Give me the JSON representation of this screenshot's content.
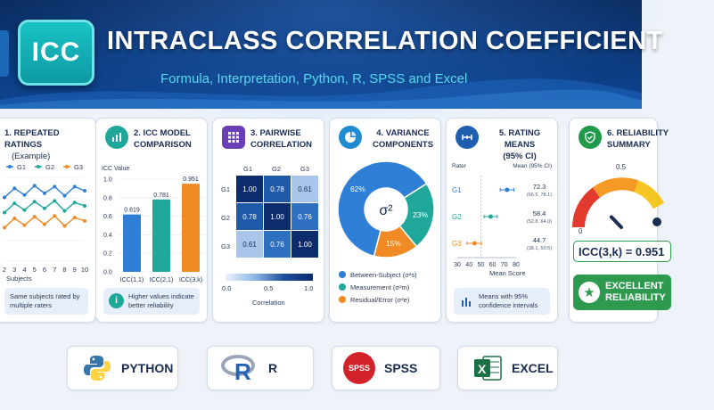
{
  "header": {
    "logo_text": "ICC",
    "title": "INTRACLASS CORRELATION COEFFICIENT",
    "subtitle": "Formula, Interpretation, Python, R, SPSS and Excel"
  },
  "card1": {
    "title": "1. REPEATED RATINGS",
    "subtitle": "(Example)",
    "legend": [
      {
        "name": "G1",
        "color": "#2f7fd6"
      },
      {
        "name": "G2",
        "color": "#1fa89a"
      },
      {
        "name": "G3",
        "color": "#f08a24"
      }
    ],
    "x_ticks": [
      "2",
      "3",
      "4",
      "5",
      "6",
      "7",
      "8",
      "9",
      "10"
    ],
    "xlabel": "Subjects",
    "note": "Same subjects rated by multiple raters",
    "icon": "line-chart-icon"
  },
  "card2": {
    "title": "2. ICC MODEL",
    "title2": "COMPARISON",
    "ylabel": "ICC Value",
    "y_ticks": [
      "1.0",
      "0.8",
      "0.6",
      "0.4",
      "0.2",
      "0.0"
    ],
    "note": "Higher values indicate better reliability",
    "icon": "bar-chart-icon",
    "note_icon": "info-icon"
  },
  "card3": {
    "title": "3. PAIRWISE",
    "title2": "CORRELATION",
    "labels": [
      "G1",
      "G2",
      "G3"
    ],
    "matrix": [
      [
        "1.00",
        "0.78",
        "0.61"
      ],
      [
        "0.78",
        "1.00",
        "0.76"
      ],
      [
        "0.61",
        "0.76",
        "1.00"
      ]
    ],
    "scale_ticks": [
      "0.0",
      "0.5",
      "1.0"
    ],
    "scale_label": "Correlation",
    "icon": "grid-icon"
  },
  "card4": {
    "title": "4. VARIANCE",
    "title2": "COMPONENTS",
    "center_label": "σ²",
    "legend": [
      {
        "label": "Between-Subject (σ²s)",
        "color": "#2f7fd6"
      },
      {
        "label": "Measurement (σ²m)",
        "color": "#1fa89a"
      },
      {
        "label": "Residual/Error (σ²e)",
        "color": "#f08a24"
      }
    ],
    "icon": "pie-chart-icon"
  },
  "card5": {
    "title": "5. RATING MEANS",
    "title2": "(95% CI)",
    "col_left": "Rater",
    "col_right": "Mean (95% CI)",
    "rows": [
      {
        "label": "G1",
        "value": "72.3",
        "ci": "(66.5, 78.1)"
      },
      {
        "label": "G2",
        "value": "58.4",
        "ci": "(52.8, 64.0)"
      },
      {
        "label": "G3",
        "value": "44.7",
        "ci": "(38.1, 50.5)"
      }
    ],
    "x_ticks": [
      "30",
      "40",
      "50",
      "60",
      "70",
      "80"
    ],
    "xlabel": "Mean Score",
    "note": "Means with 95% confidence intervals",
    "icon": "range-icon",
    "note_icon": "bar-chart-icon"
  },
  "card6": {
    "title": "6. RELIABILITY",
    "title2": "SUMMARY",
    "gauge_ticks": [
      "0",
      "0.5"
    ],
    "result": "ICC(3,k) = 0.951",
    "verdict": "EXCELLENT",
    "verdict2": "RELIABILITY",
    "icon": "shield-check-icon",
    "verdict_icon": "star-icon"
  },
  "chart_data": [
    {
      "type": "line",
      "x": [
        2,
        3,
        4,
        5,
        6,
        7,
        8,
        9,
        10
      ],
      "series": [
        {
          "name": "G1",
          "values": [
            7.6,
            8.7,
            7.9,
            9.0,
            8.1,
            8.9,
            7.8,
            8.9,
            8.4
          ]
        },
        {
          "name": "G2",
          "values": [
            5.8,
            6.9,
            6.1,
            7.1,
            6.3,
            7.2,
            6.0,
            7.0,
            6.6
          ]
        },
        {
          "name": "G3",
          "values": [
            4.0,
            5.1,
            4.3,
            5.3,
            4.4,
            5.4,
            4.2,
            5.2,
            4.8
          ]
        }
      ],
      "xlabel": "Subjects",
      "ylim": [
        0,
        10
      ],
      "legend": "top",
      "color": [
        "#2f7fd6",
        "#1fa89a",
        "#f08a24"
      ]
    },
    {
      "type": "bar",
      "categories": [
        "ICC(1,1)",
        "ICC(2,1)",
        "ICC(3,k)"
      ],
      "values": [
        0.619,
        0.781,
        0.951
      ],
      "value_labels": [
        "0.619",
        "0.781",
        "0.951"
      ],
      "ylabel": "ICC Value",
      "ylim": [
        0,
        1.0
      ],
      "colors": [
        "#2f7fd6",
        "#1fa89a",
        "#f08a24"
      ]
    },
    {
      "type": "heatmap",
      "rows": [
        "G1",
        "G2",
        "G3"
      ],
      "cols": [
        "G1",
        "G2",
        "G3"
      ],
      "values": [
        [
          1.0,
          0.78,
          0.61
        ],
        [
          0.78,
          1.0,
          0.76
        ],
        [
          0.61,
          0.76,
          1.0
        ]
      ],
      "scale": [
        0.0,
        1.0
      ]
    },
    {
      "type": "pie",
      "labels": [
        "Between-Subject",
        "Measurement",
        "Residual/Error"
      ],
      "values": [
        62,
        23,
        15
      ],
      "value_labels": [
        "62%",
        "23%",
        "15%"
      ],
      "colors": [
        "#2f7fd6",
        "#1fa89a",
        "#f08a24"
      ]
    },
    {
      "type": "scatter",
      "categories": [
        "G1",
        "G2",
        "G3"
      ],
      "means": [
        72.3,
        58.4,
        44.7
      ],
      "ci_low": [
        66.5,
        52.8,
        38.1
      ],
      "ci_high": [
        78.1,
        64.0,
        50.5
      ],
      "xlim": [
        30,
        80
      ],
      "xlabel": "Mean Score",
      "colors": [
        "#2f7fd6",
        "#1fa89a",
        "#f08a24"
      ]
    }
  ],
  "gauge": {
    "value": 0.951,
    "range": [
      0,
      1
    ]
  },
  "tools": [
    {
      "label": "PYTHON",
      "icon": "python-logo-icon"
    },
    {
      "label": "R",
      "icon": "r-logo-icon"
    },
    {
      "label": "SPSS",
      "icon": "spss-logo-icon",
      "icon_text": "SPSS"
    },
    {
      "label": "EXCEL",
      "icon": "excel-logo-icon",
      "icon_text": "X"
    }
  ]
}
